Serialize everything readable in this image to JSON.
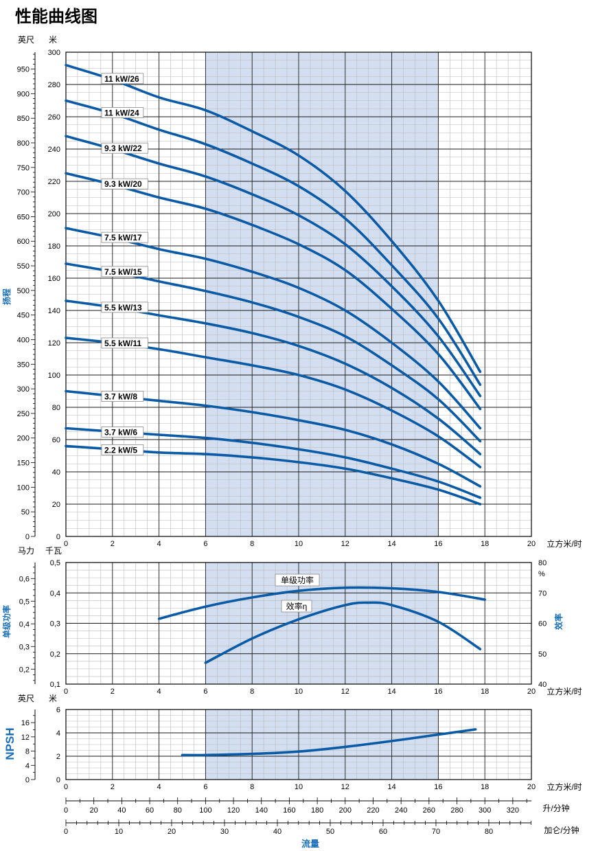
{
  "title": "性能曲线图",
  "colors": {
    "curve": "#0a5aa6",
    "shade": "#d3dff0",
    "grid_major": "#1a1a1a",
    "grid_minor": "#b9b9b9",
    "accent_text": "#1a6fb8"
  },
  "chart_data": [
    {
      "type": "line",
      "name": "head",
      "xlabel": "立方米/时",
      "xlim": [
        0,
        20
      ],
      "x_ticks": [
        "0",
        "2",
        "4",
        "6",
        "8",
        "10",
        "12",
        "14",
        "16",
        "18",
        "20"
      ],
      "ylabel": "扬程",
      "ylabel_left_unit": "英尺",
      "ylabel_right_unit": "米",
      "ylim": [
        0,
        300
      ],
      "y_ticks_m": [
        "0",
        "20",
        "40",
        "60",
        "80",
        "100",
        "120",
        "140",
        "160",
        "180",
        "200",
        "220",
        "240",
        "260",
        "280",
        "300"
      ],
      "y_ticks_ft": [
        "0",
        "50",
        "100",
        "150",
        "200",
        "250",
        "300",
        "350",
        "400",
        "450",
        "500",
        "550",
        "600",
        "650",
        "700",
        "750",
        "800",
        "850",
        "900",
        "950"
      ],
      "shaded_x_range": [
        6,
        16
      ],
      "series": [
        {
          "name": "11 kW/26",
          "x": [
            0,
            2,
            4,
            6,
            8,
            10,
            12,
            14,
            16,
            17.8
          ],
          "y": [
            292,
            283,
            272,
            264,
            251,
            236,
            214,
            183,
            146,
            102
          ]
        },
        {
          "name": "11 kW/24",
          "x": [
            0,
            2,
            4,
            6,
            8,
            10,
            12,
            14,
            16,
            17.8
          ],
          "y": [
            270,
            262,
            252,
            243,
            231,
            217,
            197,
            168,
            135,
            94
          ]
        },
        {
          "name": "9.3 kW/22",
          "x": [
            0,
            2,
            4,
            6,
            8,
            10,
            12,
            14,
            16,
            17.8
          ],
          "y": [
            248,
            240,
            231,
            223,
            212,
            199,
            181,
            155,
            124,
            87
          ]
        },
        {
          "name": "9.3 kW/20",
          "x": [
            0,
            2,
            4,
            6,
            8,
            10,
            12,
            14,
            16,
            17.8
          ],
          "y": [
            225,
            218,
            210,
            203,
            193,
            181,
            165,
            141,
            113,
            79
          ]
        },
        {
          "name": "7.5 kW/17",
          "x": [
            0,
            2,
            4,
            6,
            8,
            10,
            12,
            14,
            16,
            17.8
          ],
          "y": [
            191,
            185,
            178,
            172,
            164,
            154,
            140,
            120,
            96,
            67
          ]
        },
        {
          "name": "7.5 kW/15",
          "x": [
            0,
            2,
            4,
            6,
            8,
            10,
            12,
            14,
            16,
            17.8
          ],
          "y": [
            169,
            164,
            158,
            152,
            145,
            136,
            124,
            106,
            85,
            59
          ]
        },
        {
          "name": "5.5 kW/13",
          "x": [
            0,
            2,
            4,
            6,
            8,
            10,
            12,
            14,
            16,
            17.8
          ],
          "y": [
            146,
            142,
            137,
            132,
            126,
            118,
            107,
            92,
            73,
            51
          ]
        },
        {
          "name": "5.5 kW/11",
          "x": [
            0,
            2,
            4,
            6,
            8,
            10,
            12,
            14,
            16,
            17.8
          ],
          "y": [
            123,
            120,
            116,
            111,
            106,
            100,
            91,
            78,
            62,
            43
          ]
        },
        {
          "name": "3.7 kW/8",
          "x": [
            0,
            2,
            4,
            6,
            8,
            10,
            12,
            14,
            16,
            17.8
          ],
          "y": [
            90,
            87,
            84,
            81,
            77,
            72,
            66,
            57,
            45,
            31
          ]
        },
        {
          "name": "3.7 kW/6",
          "x": [
            0,
            2,
            4,
            6,
            8,
            10,
            12,
            14,
            16,
            17.8
          ],
          "y": [
            67,
            65,
            63,
            61,
            58,
            54,
            49,
            42,
            34,
            24
          ]
        },
        {
          "name": "2.2 kW/5",
          "x": [
            0,
            2,
            4,
            6,
            8,
            10,
            12,
            14,
            16,
            17.8
          ],
          "y": [
            56,
            54,
            52,
            51,
            49,
            46,
            42,
            36,
            29,
            20
          ]
        }
      ]
    },
    {
      "type": "line",
      "name": "power-efficiency",
      "xlabel": "立方米/时",
      "xlim": [
        0,
        20
      ],
      "x_ticks": [
        "0",
        "2",
        "4",
        "6",
        "8",
        "10",
        "12",
        "14",
        "16",
        "18",
        "20"
      ],
      "ylabel_left": "单级功率",
      "ylabel_left_units": [
        "马力",
        "千瓦"
      ],
      "ylim_kw": [
        0.1,
        0.5
      ],
      "y_ticks_kw": [
        "0,1",
        "0,2",
        "0,3",
        "0,4",
        "0,5"
      ],
      "y_ticks_hp": [
        "0,2",
        "0,3",
        "0,4",
        "0,5",
        "0,6"
      ],
      "ylabel_right": "效率",
      "ylabel_right_unit": "%",
      "ylim_eff": [
        40,
        80
      ],
      "y_ticks_eff": [
        "40",
        "50",
        "60",
        "70",
        "80"
      ],
      "shaded_x_range": [
        6,
        16
      ],
      "series": [
        {
          "name": "单级功率",
          "x": [
            4,
            6,
            8,
            10,
            12,
            14,
            16,
            18
          ],
          "y": [
            0.315,
            0.355,
            0.385,
            0.407,
            0.417,
            0.415,
            0.403,
            0.378
          ]
        },
        {
          "name": "效率η",
          "x": [
            6,
            8,
            10,
            12,
            13,
            14,
            16,
            17.8
          ],
          "y": [
            47,
            55,
            61.3,
            66,
            66.8,
            66,
            60.5,
            51.5
          ]
        }
      ]
    },
    {
      "type": "line",
      "name": "npsh",
      "xlabel": "立方米/时",
      "xlim": [
        0,
        20
      ],
      "x_ticks": [
        "0",
        "2",
        "4",
        "6",
        "8",
        "10",
        "12",
        "14",
        "16",
        "18",
        "20"
      ],
      "ylabel": "NPSH",
      "ylabel_left_unit": "英尺",
      "ylabel_right_unit": "米",
      "ylim": [
        0,
        6
      ],
      "y_ticks_m": [
        "0",
        "2",
        "4",
        "6"
      ],
      "y_ticks_ft": [
        "0",
        "4",
        "8",
        "12",
        "16"
      ],
      "shaded_x_range": [
        6,
        16
      ],
      "series": [
        {
          "name": "NPSH",
          "x": [
            5,
            6,
            8,
            10,
            12,
            14,
            16,
            17.6
          ],
          "y": [
            2.1,
            2.1,
            2.2,
            2.4,
            2.8,
            3.3,
            3.85,
            4.3
          ]
        }
      ]
    }
  ],
  "flow_axes": {
    "lpm_label": "升/分钟",
    "lpm_ticks": [
      "0",
      "20",
      "40",
      "60",
      "80",
      "100",
      "120",
      "140",
      "160",
      "180",
      "200",
      "220",
      "240",
      "260",
      "280",
      "300",
      "320"
    ],
    "gpm_label": "加仑/分钟",
    "gpm_ticks": [
      "0",
      "10",
      "20",
      "30",
      "40",
      "50",
      "60",
      "70",
      "80"
    ],
    "flow_label": "流量"
  }
}
